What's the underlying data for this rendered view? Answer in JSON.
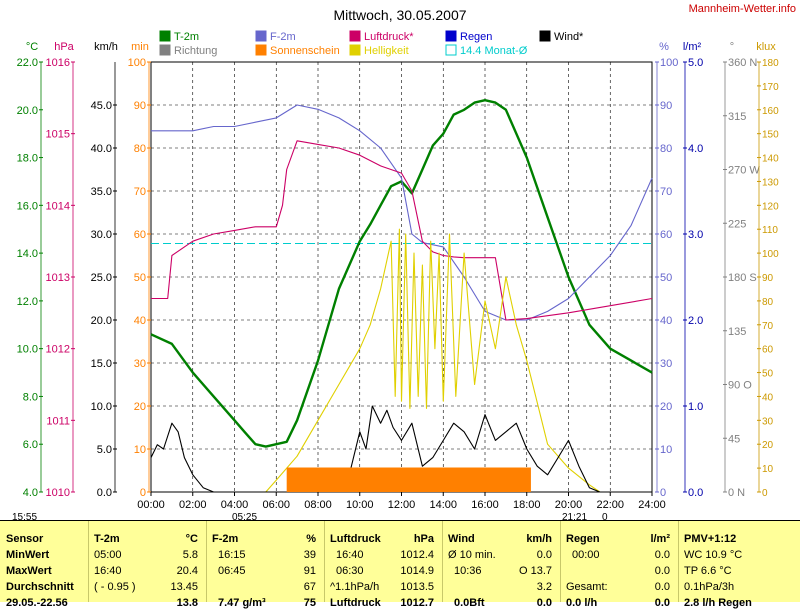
{
  "page": {
    "title": "Mittwoch, 30.05.2007",
    "watermark": "Mannheim-Wetter.info"
  },
  "chart_data": {
    "type": "line",
    "x_ticks": [
      "00:00",
      "02:00",
      "04:00",
      "06:00",
      "08:00",
      "10:00",
      "12:00",
      "14:00",
      "16:00",
      "18:00",
      "20:00",
      "22:00",
      "24:00"
    ],
    "xlim": [
      0,
      24
    ],
    "grid": true,
    "left_axes": [
      {
        "unit": "°C",
        "min": 4.0,
        "max": 22.0,
        "ticks": [
          "4.0",
          "6.0",
          "8.0",
          "10.0",
          "12.0",
          "14.0",
          "16.0",
          "18.0",
          "20.0",
          "22.0"
        ],
        "color": "#008000"
      },
      {
        "unit": "hPa",
        "min": 1010,
        "max": 1016,
        "ticks": [
          "1010",
          "1011",
          "1012",
          "1013",
          "1014",
          "1015",
          "1016"
        ],
        "color": "#cc0066"
      },
      {
        "unit": "km/h",
        "min": 0.0,
        "max": 50.0,
        "ticks": [
          "0.0",
          "5.0",
          "10.0",
          "15.0",
          "20.0",
          "25.0",
          "30.0",
          "35.0",
          "40.0",
          "45.0"
        ],
        "color": "#000000"
      },
      {
        "unit": "min",
        "min": 0,
        "max": 100,
        "ticks": [
          "0",
          "10",
          "20",
          "30",
          "40",
          "50",
          "60",
          "70",
          "80",
          "90",
          "100"
        ],
        "color": "#ff8000"
      }
    ],
    "right_axes": [
      {
        "unit": "%",
        "min": 0,
        "max": 100,
        "ticks": [
          "0",
          "10",
          "20",
          "30",
          "40",
          "50",
          "60",
          "70",
          "80",
          "90",
          "100"
        ],
        "color": "#6666cc"
      },
      {
        "unit": "l/m²",
        "min": 0.0,
        "max": 5.0,
        "ticks": [
          "0.0",
          "1.0",
          "2.0",
          "3.0",
          "4.0",
          "5.0"
        ],
        "color": "#0000aa"
      },
      {
        "unit": "°",
        "min": 0,
        "max": 360,
        "ticks": [
          "0 N",
          "45",
          "90 O",
          "135",
          "180 S",
          "225",
          "270 W",
          "315",
          "360 N"
        ],
        "color": "#808080"
      },
      {
        "unit": "klux",
        "min": 0,
        "max": 180,
        "ticks": [
          "0",
          "10",
          "20",
          "30",
          "40",
          "50",
          "60",
          "70",
          "80",
          "90",
          "100",
          "110",
          "120",
          "130",
          "140",
          "150",
          "160",
          "170",
          "180"
        ],
        "color": "#cc9900"
      }
    ],
    "legend": [
      {
        "name": "T-2m",
        "color": "#008000"
      },
      {
        "name": "Richtung",
        "color": "#808080"
      },
      {
        "name": "F-2m",
        "color": "#6666cc"
      },
      {
        "name": "Sonnenschein",
        "color": "#ff8000"
      },
      {
        "name": "Luftdruck*",
        "color": "#cc0066"
      },
      {
        "name": "Helligkeit",
        "color": "#e0d000"
      },
      {
        "name": "Regen",
        "color": "#0000cc"
      },
      {
        "name": "14.4 Monat-Ø",
        "color": "#00cccc"
      },
      {
        "name": "Wind*",
        "color": "#000000"
      }
    ],
    "monthly_avg_temp": 14.4,
    "series": [
      {
        "name": "T-2m",
        "unit": "°C",
        "color": "#008000",
        "x": [
          0,
          1,
          2,
          3,
          4,
          4.5,
          5,
          5.5,
          6,
          6.5,
          7,
          8,
          9,
          10,
          10.5,
          11,
          11.5,
          12,
          12.5,
          13,
          13.5,
          14,
          14.5,
          15,
          15.5,
          16,
          16.5,
          17,
          18,
          19,
          20,
          21,
          22,
          23,
          24
        ],
        "y": [
          10.6,
          10.2,
          9.0,
          8.0,
          7.0,
          6.5,
          6.0,
          5.9,
          6.0,
          6.1,
          7.0,
          9.5,
          12.5,
          14.5,
          15.2,
          16.0,
          16.8,
          17.0,
          16.5,
          17.5,
          18.5,
          19.0,
          19.8,
          20.0,
          20.3,
          20.4,
          20.3,
          20.0,
          18.0,
          15.5,
          13.0,
          11.0,
          10.0,
          9.5,
          9.0
        ]
      },
      {
        "name": "F-2m",
        "unit": "%",
        "color": "#6666cc",
        "x": [
          0,
          1,
          2,
          3,
          4,
          5,
          6,
          7,
          8,
          9,
          10,
          11,
          12,
          12.5,
          13,
          14,
          15,
          16,
          17,
          18,
          19,
          20,
          21,
          22,
          23,
          24
        ],
        "y": [
          84,
          84,
          84,
          85,
          85,
          86,
          87,
          90,
          89,
          87,
          84,
          80,
          73,
          60,
          58,
          57,
          50,
          42,
          40,
          40,
          42,
          45,
          50,
          55,
          62,
          73
        ]
      },
      {
        "name": "Luftdruck*",
        "unit": "hPa",
        "color": "#cc0066",
        "x": [
          0,
          0.8,
          1,
          2,
          3,
          4,
          5,
          6,
          6.3,
          6.5,
          7,
          8,
          9,
          10,
          11,
          12,
          12.5,
          13,
          13.5,
          14,
          14.5,
          15,
          15.5,
          16,
          16.5,
          17,
          18,
          20,
          22,
          24
        ],
        "y": [
          1012.7,
          1012.7,
          1013.3,
          1013.5,
          1013.6,
          1013.65,
          1013.7,
          1013.7,
          1014.0,
          1014.5,
          1014.9,
          1014.85,
          1014.8,
          1014.7,
          1014.55,
          1014.45,
          1014.2,
          1013.5,
          1013.35,
          1013.3,
          1013.28,
          1013.27,
          1013.27,
          1013.27,
          1013.27,
          1012.4,
          1012.42,
          1012.5,
          1012.6,
          1012.7
        ]
      },
      {
        "name": "Helligkeit",
        "unit": "klux",
        "color": "#e0d000",
        "x": [
          5.5,
          6,
          7,
          8,
          9,
          10,
          10.5,
          11,
          11.5,
          11.7,
          11.9,
          12,
          12.2,
          12.4,
          12.6,
          12.8,
          13,
          13.2,
          13.4,
          13.6,
          13.8,
          14,
          14.3,
          14.6,
          15,
          15.5,
          16,
          16.5,
          17,
          17.5,
          18,
          19,
          20,
          21,
          21.5
        ],
        "y": [
          0,
          5,
          15,
          30,
          45,
          60,
          70,
          85,
          105,
          40,
          110,
          38,
          108,
          35,
          100,
          40,
          95,
          35,
          105,
          60,
          100,
          38,
          108,
          40,
          100,
          45,
          80,
          60,
          90,
          70,
          55,
          20,
          10,
          3,
          0
        ]
      },
      {
        "name": "Wind*",
        "unit": "km/h",
        "color": "#000000",
        "x": [
          0,
          0.3,
          0.6,
          1,
          1.3,
          1.6,
          2,
          2.5,
          3,
          3.5,
          4,
          4.5,
          5,
          5.5,
          6,
          6.5,
          7,
          7.5,
          8,
          8.5,
          9,
          9.5,
          10,
          10.3,
          10.6,
          11,
          11.3,
          11.6,
          12,
          12.5,
          13,
          13.5,
          14,
          14.5,
          15,
          15.5,
          16,
          16.5,
          17,
          17.5,
          18,
          18.5,
          19,
          19.5,
          20,
          20.5,
          21,
          21.5,
          22
        ],
        "y": [
          4.0,
          5.5,
          5.0,
          8.0,
          7.0,
          4.0,
          2.0,
          0.5,
          0,
          0,
          0,
          0,
          0,
          0,
          0,
          0,
          0,
          0,
          0,
          0,
          0,
          2.0,
          7.0,
          5.0,
          10.0,
          8.0,
          9.5,
          7.5,
          6.0,
          8.0,
          3.0,
          4.0,
          6.0,
          8.0,
          7.0,
          5.0,
          9.0,
          6.0,
          7.0,
          8.0,
          5.0,
          3.0,
          2.0,
          4.0,
          6.0,
          3.0,
          0.5,
          0,
          0
        ]
      },
      {
        "name": "Sonnenschein",
        "unit": "min",
        "color": "#ff8000",
        "x": [
          6.5,
          18.2
        ],
        "y": [
          5,
          5
        ]
      }
    ]
  },
  "bottom_labels": {
    "sunrise": "05:25",
    "sunset": "21:21",
    "moonrise": "15:55",
    "moonset": "0"
  },
  "stats": {
    "sensor": {
      "header": "Sensor",
      "rows": [
        "MinWert",
        "MaxWert",
        "Durchschnitt",
        "29.05.-22.56"
      ]
    },
    "t2m": {
      "header": "T-2m",
      "unit": "°C",
      "rows": [
        [
          "05:00",
          "5.8"
        ],
        [
          "16:40",
          "20.4"
        ],
        [
          "( - 0.95 )",
          "13.45"
        ],
        [
          "",
          "13.8"
        ]
      ]
    },
    "f2m": {
      "header": "F-2m",
      "unit": "%",
      "rows": [
        [
          "16:15",
          "39"
        ],
        [
          "06:45",
          "91"
        ],
        [
          "",
          "67"
        ],
        [
          "7.47 g/m³",
          "75"
        ]
      ]
    },
    "luftdruck": {
      "header": "Luftdruck",
      "unit": "hPa",
      "rows": [
        [
          "16:40",
          "1012.4"
        ],
        [
          "06:30",
          "1014.9"
        ],
        [
          "^1.1hPa/h",
          "1013.5"
        ],
        [
          "Luftdruck",
          "1012.7"
        ]
      ]
    },
    "wind": {
      "header": "Wind",
      "unit": "km/h",
      "rows": [
        [
          "Ø 10 min.",
          "0.0"
        ],
        [
          "10:36",
          "O 13.7"
        ],
        [
          "",
          "3.2"
        ],
        [
          "0.0Bft",
          "0.0"
        ]
      ]
    },
    "regen": {
      "header": "Regen",
      "unit": "l/m²",
      "rows": [
        [
          "00:00",
          "0.0"
        ],
        [
          "",
          "0.0"
        ],
        [
          "Gesamt:",
          "0.0"
        ],
        [
          "0.0 l/h",
          "0.0"
        ]
      ]
    },
    "pmv": {
      "header": "PMV+1:12",
      "rows": [
        "WC 10.9 °C",
        "TP 6.6 °C",
        "0.1hPa/3h",
        "2.8 l/h Regen"
      ]
    }
  }
}
